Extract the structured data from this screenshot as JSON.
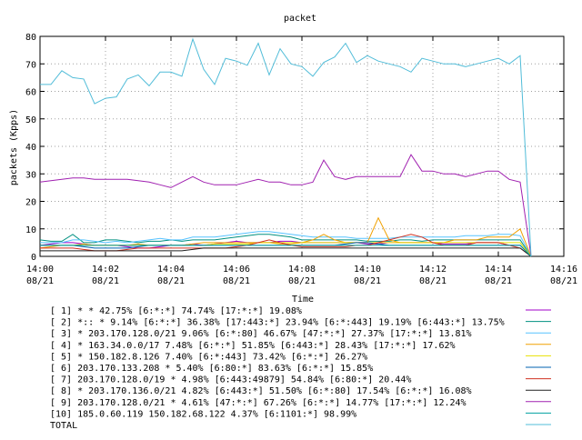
{
  "chart_data": {
    "type": "line",
    "title": "packet",
    "xlabel": "Time",
    "ylabel": "packets (Kpps)",
    "ylim": [
      0,
      80
    ],
    "yticks": [
      0,
      10,
      20,
      30,
      40,
      50,
      60,
      70,
      80
    ],
    "xlim": [
      "14:00",
      "14:16"
    ],
    "xticks": [
      {
        "time": "14:00",
        "date": "08/21"
      },
      {
        "time": "14:02",
        "date": "08/21"
      },
      {
        "time": "14:04",
        "date": "08/21"
      },
      {
        "time": "14:06",
        "date": "08/21"
      },
      {
        "time": "14:08",
        "date": "08/21"
      },
      {
        "time": "14:10",
        "date": "08/21"
      },
      {
        "time": "14:12",
        "date": "08/21"
      },
      {
        "time": "14:14",
        "date": "08/21"
      },
      {
        "time": "14:16",
        "date": "08/21"
      }
    ],
    "grid": true,
    "legend_position": "bottom",
    "x": [
      "14:00:00",
      "14:00:20",
      "14:00:40",
      "14:01:00",
      "14:01:20",
      "14:01:40",
      "14:02:00",
      "14:02:20",
      "14:02:40",
      "14:03:00",
      "14:03:20",
      "14:03:40",
      "14:04:00",
      "14:04:20",
      "14:04:40",
      "14:05:00",
      "14:05:20",
      "14:05:40",
      "14:06:00",
      "14:06:20",
      "14:06:40",
      "14:07:00",
      "14:07:20",
      "14:07:40",
      "14:08:00",
      "14:08:20",
      "14:08:40",
      "14:09:00",
      "14:09:20",
      "14:09:40",
      "14:10:00",
      "14:10:20",
      "14:10:40",
      "14:11:00",
      "14:11:20",
      "14:11:40",
      "14:12:00",
      "14:12:20",
      "14:12:40",
      "14:13:00",
      "14:13:20",
      "14:13:40",
      "14:14:00",
      "14:14:20",
      "14:14:40",
      "14:15:00"
    ],
    "series": [
      {
        "name": "[ 1] * * 42.75%  [6:*:*] 74.74% [17:*:*] 19.08%",
        "color": "#a000c8",
        "values": [
          4,
          4.5,
          5,
          5,
          4.5,
          4,
          4,
          4,
          3.5,
          3,
          3,
          3.5,
          4,
          4,
          4.5,
          4,
          4.5,
          5,
          5.5,
          5,
          5,
          5,
          5.5,
          5.5,
          5,
          5,
          5,
          5,
          5,
          5,
          4.5,
          4.5,
          5,
          5,
          5,
          5,
          5,
          4.5,
          4.5,
          4.5,
          5,
          5,
          5,
          4,
          4,
          0
        ]
      },
      {
        "name": "[ 2] *:: * 9.14%  [6:*:*] 36.38% [17:443:*] 23.94% [6:*:443] 19.19% [6:443:*] 13.75%",
        "color": "#009080",
        "values": [
          6,
          5.5,
          5.5,
          8,
          5,
          5,
          6,
          6,
          5.5,
          5,
          5.5,
          5.5,
          6,
          5.5,
          6,
          6,
          6,
          6.5,
          7,
          7.5,
          8,
          8,
          7.5,
          7,
          6,
          6,
          6,
          6,
          6,
          6,
          5.5,
          5.5,
          5.5,
          6,
          6,
          5.5,
          6,
          6,
          6,
          6,
          6,
          6,
          6,
          6,
          6,
          0
        ]
      },
      {
        "name": "[ 3] * 203.170.128.0/21 9.06%  [6:*:80] 46.67% [47:*:*] 27.37% [17:*:*] 13.81%",
        "color": "#56c2ff",
        "values": [
          5,
          5,
          5,
          6,
          6,
          5.5,
          5,
          5.5,
          5,
          5.5,
          6,
          6.5,
          6,
          6,
          7,
          7,
          7,
          7.5,
          8,
          8.5,
          9,
          9,
          8.5,
          8,
          7.5,
          7,
          7,
          7,
          7,
          6.5,
          6.5,
          6.5,
          6.5,
          7,
          7,
          7,
          7,
          7,
          7,
          7.5,
          7.5,
          7.5,
          8,
          8,
          7.5,
          0
        ]
      },
      {
        "name": "[ 4] * 163.34.0.0/17 7.48%  [6:*:*] 51.85% [6:443:*] 28.43% [17:*:*] 17.62%",
        "color": "#f0a000",
        "values": [
          3,
          3.5,
          4,
          4,
          4.5,
          4,
          4,
          4,
          4,
          4.5,
          4,
          4,
          4,
          4,
          4.5,
          5,
          5,
          5,
          5,
          5,
          5,
          5,
          4.5,
          4.5,
          5,
          6,
          8,
          6,
          5,
          5,
          5,
          14,
          6,
          5,
          5,
          5,
          5,
          5,
          6,
          6,
          6,
          7,
          7,
          7,
          10,
          0
        ]
      },
      {
        "name": "[ 5] * 150.182.8.126 7.40%  [6:*:443] 73.42% [6:*:*] 26.27%",
        "color": "#e8e000",
        "values": [
          4,
          4,
          4,
          4,
          4,
          4,
          4,
          4,
          4,
          4,
          4,
          4,
          4,
          4,
          4,
          4,
          4.5,
          4.5,
          4.5,
          4.5,
          5,
          5,
          5,
          5,
          5,
          5,
          5,
          5,
          5,
          5,
          5,
          5,
          5,
          5,
          5,
          5,
          5,
          5,
          5,
          5,
          5,
          5,
          5,
          5,
          5,
          0
        ]
      },
      {
        "name": "[ 6] 203.170.133.208 * 5.40%  [6:80:*] 83.63% [6:*:*] 15.85%",
        "color": "#0060b0",
        "values": [
          4,
          4,
          4,
          4,
          3.5,
          3,
          3,
          3,
          3,
          3.5,
          4,
          4,
          4,
          4,
          4,
          4,
          4,
          4,
          4,
          4,
          4,
          4,
          4,
          4,
          4,
          4,
          4,
          4,
          4.5,
          5,
          5,
          4.5,
          4,
          4,
          4,
          4,
          4,
          4,
          4,
          4,
          4,
          4,
          4,
          4,
          4,
          0
        ]
      },
      {
        "name": "[ 7] 203.170.128.0/19 * 4.98%  [6:443:49879] 54.84% [6:80:*] 20.44%",
        "color": "#d03020",
        "values": [
          3,
          3,
          3,
          3,
          2.5,
          2,
          2,
          2,
          2.5,
          3,
          3,
          3,
          3,
          3,
          3,
          3,
          3,
          3,
          3.5,
          4,
          5,
          6,
          5,
          4,
          3.5,
          3.5,
          3.5,
          3.5,
          3.5,
          4,
          4,
          5,
          6,
          7,
          8,
          7,
          5,
          4,
          4,
          4,
          5,
          5,
          5,
          4,
          3,
          0
        ]
      },
      {
        "name": "[ 8] * 203.170.136.0/21 4.82%  [6:443:*] 51.50% [6:*:80] 17.54% [6:*:*] 16.08%",
        "color": "#202020",
        "values": [
          2,
          2,
          2,
          2,
          2,
          2,
          2,
          2,
          2,
          2,
          2,
          2,
          2,
          2,
          2.5,
          3,
          3,
          3,
          3,
          3,
          3,
          3,
          3,
          3,
          3,
          3,
          3,
          3,
          3,
          3,
          3,
          3,
          3,
          3,
          3,
          3,
          3,
          3,
          3,
          3,
          3,
          3,
          3,
          3,
          3,
          0
        ]
      },
      {
        "name": "[ 9] 203.170.128.0/21 * 4.61%  [47:*:*] 67.26% [6:*:*] 14.77% [17:*:*] 12.24%",
        "color": "#a020b0",
        "values": [
          27,
          27.5,
          28,
          28.5,
          28.5,
          28,
          28,
          28,
          28,
          27.5,
          27,
          26,
          25,
          27,
          29,
          27,
          26,
          26,
          26,
          27,
          28,
          27,
          27,
          26,
          26,
          27,
          35,
          29,
          28,
          29,
          29,
          29,
          29,
          29,
          37,
          31,
          31,
          30,
          30,
          29,
          30,
          31,
          31,
          28,
          27,
          0
        ]
      },
      {
        "name": "[10] 185.0.60.119 150.182.68.122 4.37%  [6:1101:*] 98.99%",
        "color": "#00a0a0",
        "values": [
          4,
          4,
          4,
          4,
          4,
          4,
          4,
          4,
          4,
          4,
          4,
          4,
          4,
          4,
          4,
          4,
          4,
          4,
          4,
          4,
          4,
          4,
          4,
          4,
          4,
          4,
          4,
          4,
          4,
          4,
          4,
          4,
          4,
          4,
          4,
          4,
          4,
          4,
          4,
          4,
          4,
          4,
          4,
          4,
          4,
          0
        ]
      },
      {
        "name": "TOTAL",
        "color": "#50bcd8",
        "values": [
          62.5,
          62.5,
          67.5,
          65,
          64.5,
          55.5,
          57.5,
          58,
          64.5,
          66,
          62,
          67,
          67,
          65.5,
          79,
          68,
          62.5,
          72,
          71,
          69.5,
          77.5,
          66,
          75.5,
          70,
          69,
          65.5,
          70.5,
          72.5,
          77.5,
          70.5,
          73,
          71,
          70,
          69,
          67,
          72,
          71,
          70,
          70,
          69,
          70,
          71,
          72,
          70,
          73,
          0
        ]
      }
    ]
  }
}
